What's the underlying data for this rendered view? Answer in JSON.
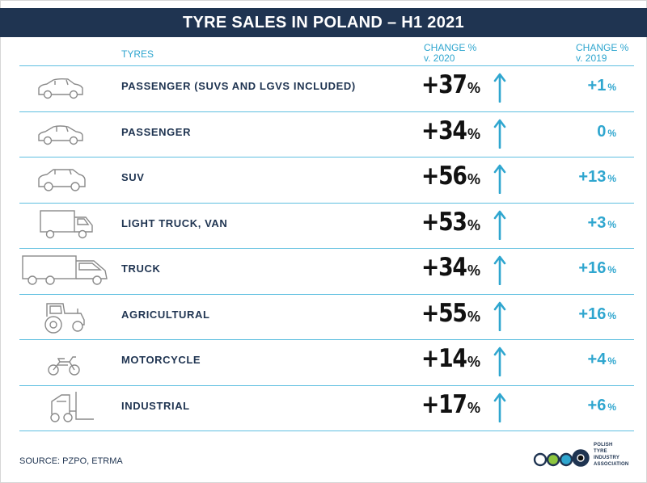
{
  "title": "TYRE SALES IN POLAND – H1 2021",
  "headers": {
    "tyres": "TYRES",
    "change_2020_line1": "CHANGE %",
    "change_2020_line2": "v. 2020",
    "change_2019_line1": "CHANGE %",
    "change_2019_line2": "v. 2019"
  },
  "chart_data": {
    "type": "table",
    "title": "TYRE SALES IN POLAND – H1 2021",
    "columns": [
      "TYRES",
      "CHANGE % v. 2020",
      "CHANGE % v. 2019"
    ],
    "rows": [
      {
        "category": "PASSENGER (SUVS AND LGVS INCLUDED)",
        "icon": "car-icon",
        "change_2020": "+37",
        "change_2019": "+1"
      },
      {
        "category": "PASSENGER",
        "icon": "car-icon",
        "change_2020": "+34",
        "change_2019": "0"
      },
      {
        "category": "SUV",
        "icon": "suv-icon",
        "change_2020": "+56",
        "change_2019": "+13"
      },
      {
        "category": "LIGHT TRUCK, VAN",
        "icon": "van-icon",
        "change_2020": "+53",
        "change_2019": "+3"
      },
      {
        "category": "TRUCK",
        "icon": "truck-icon",
        "change_2020": "+34",
        "change_2019": "+16"
      },
      {
        "category": "AGRICULTURAL",
        "icon": "tractor-icon",
        "change_2020": "+55",
        "change_2019": "+16"
      },
      {
        "category": "MOTORCYCLE",
        "icon": "motorcycle-icon",
        "change_2020": "+14",
        "change_2019": "+4"
      },
      {
        "category": "INDUSTRIAL",
        "icon": "forklift-icon",
        "change_2020": "+17",
        "change_2019": "+6"
      }
    ],
    "values_change_2020": [
      37,
      34,
      56,
      53,
      34,
      55,
      14,
      17
    ],
    "values_change_2019": [
      1,
      0,
      13,
      3,
      16,
      16,
      4,
      6
    ],
    "trend_icon": "up-arrow-icon"
  },
  "pct_sign": "%",
  "source": "SOURCE: PZPO, ETRMA",
  "association_logo": {
    "lines": [
      "POLISH",
      "TYRE",
      "INDUSTRY",
      "ASSOCIATION"
    ],
    "colors": [
      "#ffffff",
      "#8dc63f",
      "#2fa6cf",
      "#1f3451",
      "#111111"
    ]
  },
  "colors": {
    "navy": "#1f3451",
    "accent_blue": "#2fa6cf",
    "divider": "#5fbfe0",
    "value_black": "#111111"
  }
}
